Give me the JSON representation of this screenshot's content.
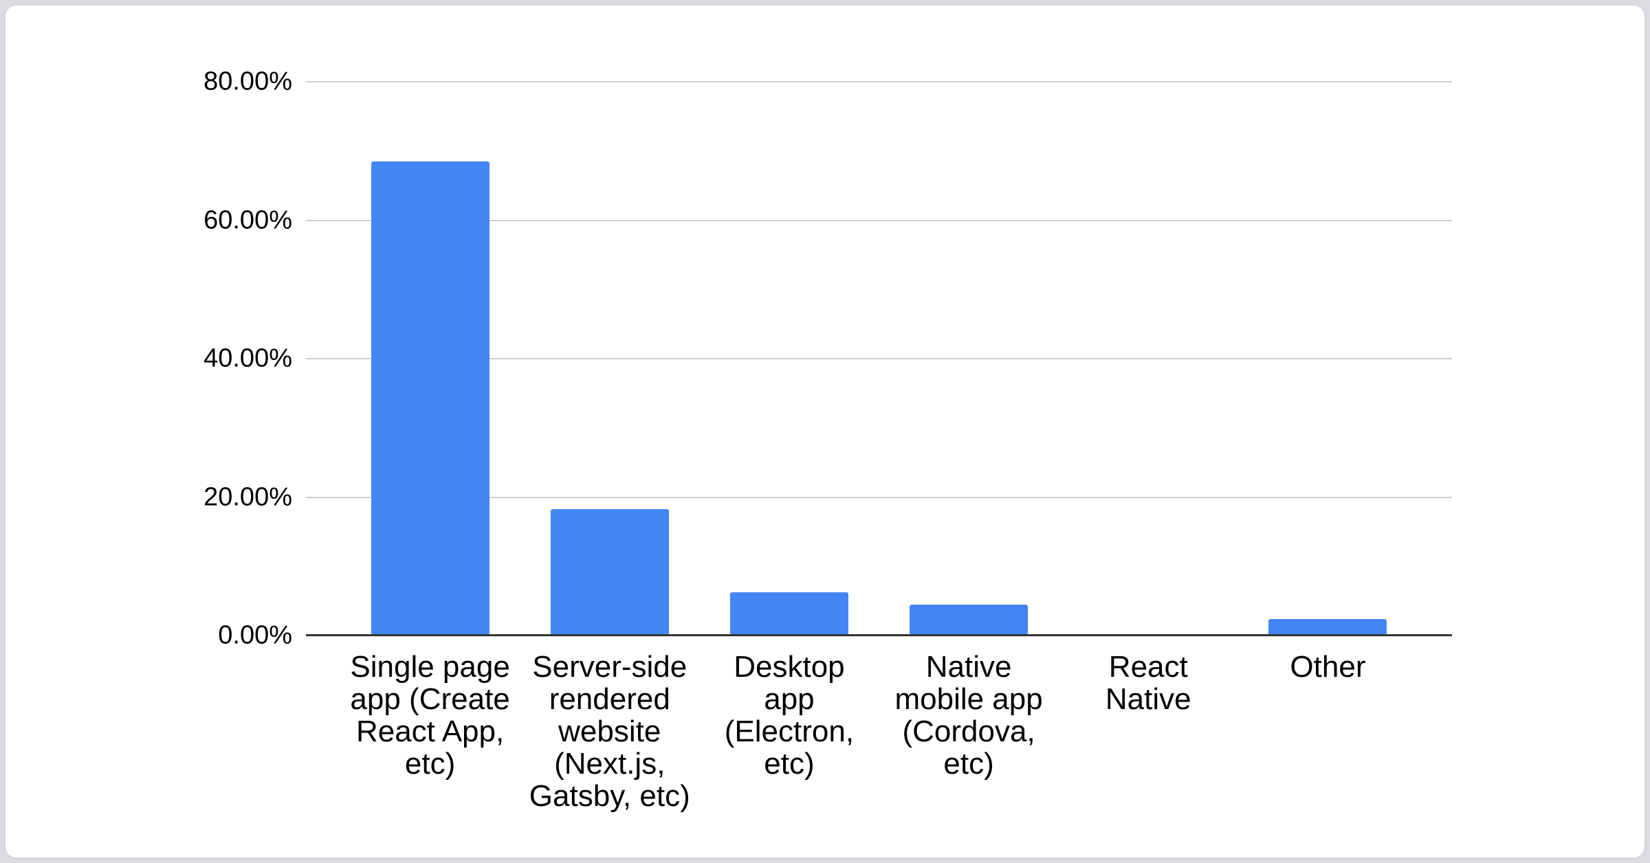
{
  "chart_data": {
    "type": "bar",
    "title": "",
    "xlabel": "",
    "ylabel": "",
    "unit": "%",
    "ylim": [
      0,
      80
    ],
    "grid": true,
    "legend_position": "none",
    "categories": [
      "Single page app (Create React App, etc)",
      "Server-side rendered website (Next.js, Gatsby, etc)",
      "Desktop app (Electron, etc)",
      "Native mobile app (Cordova, etc)",
      "React Native",
      "Other"
    ],
    "category_lines": [
      [
        "Single page",
        "app (Create",
        "React App,",
        "etc)"
      ],
      [
        "Server-side",
        "rendered",
        "website",
        "(Next.js,",
        "Gatsby, etc)"
      ],
      [
        "Desktop",
        "app",
        "(Electron,",
        "etc)"
      ],
      [
        "Native",
        "mobile app",
        "(Cordova,",
        "etc)"
      ],
      [
        "React",
        "Native"
      ],
      [
        "Other"
      ]
    ],
    "values": [
      68.5,
      18.3,
      6.3,
      4.5,
      0,
      2.4
    ],
    "ytick_labels": [
      "80.00%",
      "60.00%",
      "40.00%",
      "20.00%",
      "0.00%"
    ],
    "ytick_values": [
      80,
      60,
      40,
      20,
      0
    ]
  },
  "colors": {
    "bar": "#4385f3",
    "gridline": "#cccccc",
    "axis_line": "#333333",
    "label_text": "#000000",
    "card_background": "#ffffff",
    "card_border": "#d2d6da",
    "page_background": "#dadcdf"
  }
}
